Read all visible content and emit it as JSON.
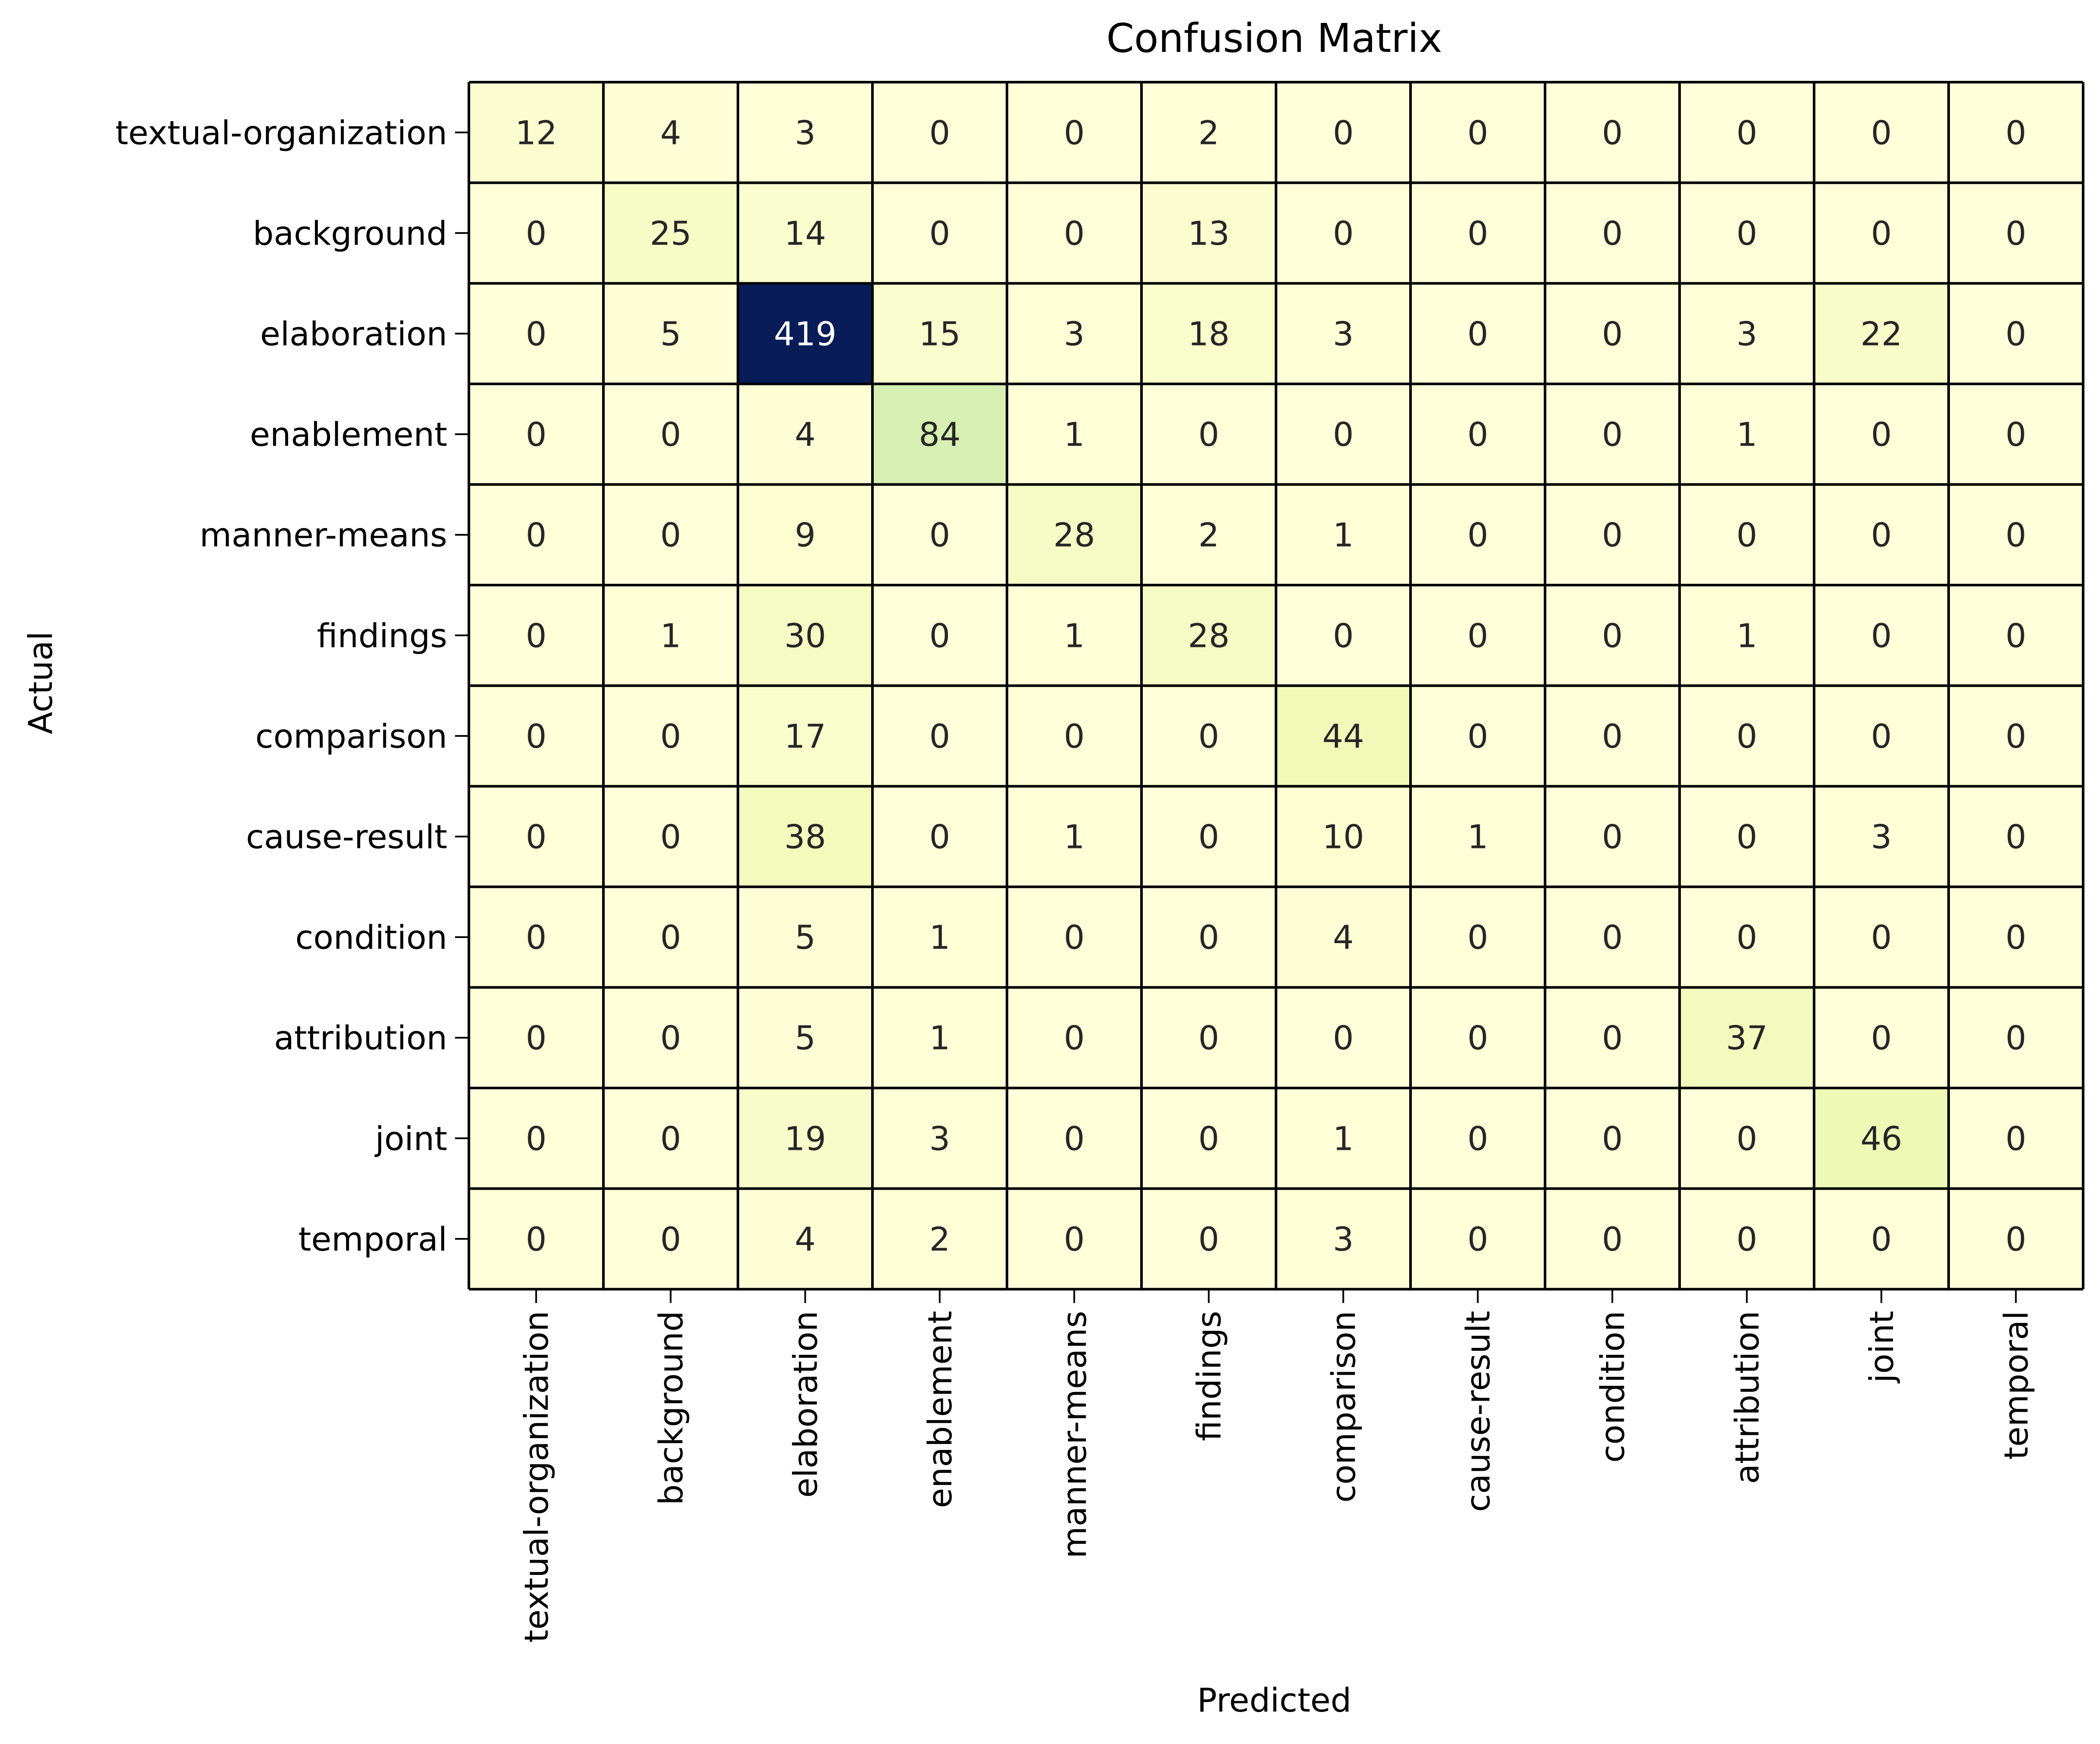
{
  "chart_data": {
    "type": "heatmap",
    "title": "Confusion Matrix",
    "xlabel": "Predicted",
    "ylabel": "Actual",
    "colormap": "YlGnBu",
    "colorbar": false,
    "vmin": 0,
    "vmax": 419,
    "x_categories": [
      "textual-organization",
      "background",
      "elaboration",
      "enablement",
      "manner-means",
      "findings",
      "comparison",
      "cause-result",
      "condition",
      "attribution",
      "joint",
      "temporal"
    ],
    "y_categories": [
      "textual-organization",
      "background",
      "elaboration",
      "enablement",
      "manner-means",
      "findings",
      "comparison",
      "cause-result",
      "condition",
      "attribution",
      "joint",
      "temporal"
    ],
    "values": [
      [
        12,
        4,
        3,
        0,
        0,
        2,
        0,
        0,
        0,
        0,
        0,
        0
      ],
      [
        0,
        25,
        14,
        0,
        0,
        13,
        0,
        0,
        0,
        0,
        0,
        0
      ],
      [
        0,
        5,
        419,
        15,
        3,
        18,
        3,
        0,
        0,
        3,
        22,
        0
      ],
      [
        0,
        0,
        4,
        84,
        1,
        0,
        0,
        0,
        0,
        1,
        0,
        0
      ],
      [
        0,
        0,
        9,
        0,
        28,
        2,
        1,
        0,
        0,
        0,
        0,
        0
      ],
      [
        0,
        1,
        30,
        0,
        1,
        28,
        0,
        0,
        0,
        1,
        0,
        0
      ],
      [
        0,
        0,
        17,
        0,
        0,
        0,
        44,
        0,
        0,
        0,
        0,
        0
      ],
      [
        0,
        0,
        38,
        0,
        1,
        0,
        10,
        1,
        0,
        0,
        3,
        0
      ],
      [
        0,
        0,
        5,
        1,
        0,
        0,
        4,
        0,
        0,
        0,
        0,
        0
      ],
      [
        0,
        0,
        5,
        1,
        0,
        0,
        0,
        0,
        0,
        37,
        0,
        0
      ],
      [
        0,
        0,
        19,
        3,
        0,
        0,
        1,
        0,
        0,
        0,
        46,
        0
      ],
      [
        0,
        0,
        4,
        2,
        0,
        0,
        3,
        0,
        0,
        0,
        0,
        0
      ]
    ]
  }
}
